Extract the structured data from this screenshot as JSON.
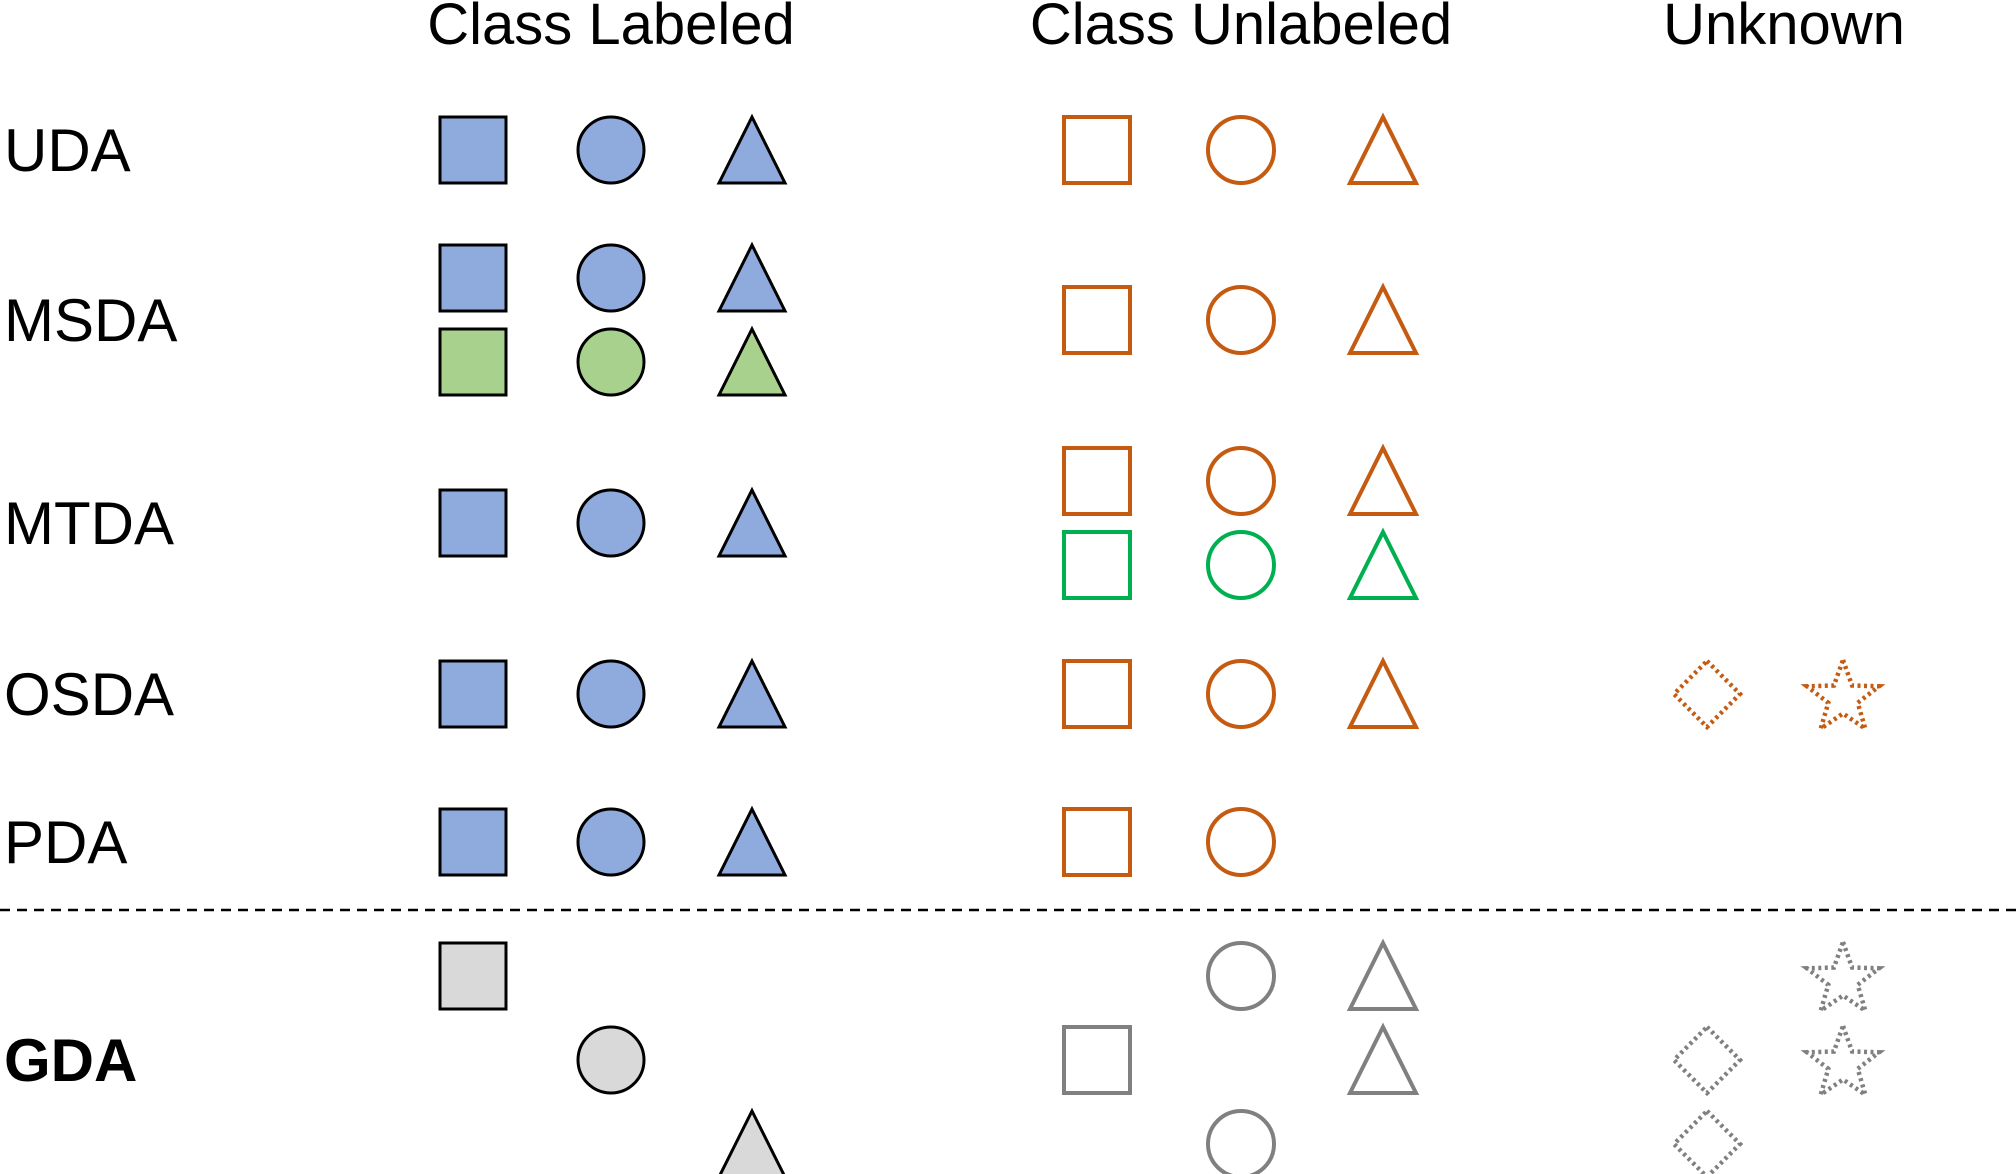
{
  "headers": {
    "class_labeled": "Class Labeled",
    "class_unlabeled": "Class Unlabeled",
    "unknown": "Unknown"
  },
  "colors": {
    "source_fill": "#8faadc",
    "source2_fill": "#a9d18e",
    "gda_fill": "#d9d9d9",
    "target_stroke": "#c55a11",
    "target2_stroke": "#00b050",
    "gda_stroke": "#808080",
    "black": "#000000"
  },
  "rows": [
    {
      "label": "UDA",
      "bold": false,
      "shapes": [
        {
          "shape": "square",
          "col": 0,
          "line": 0,
          "style": "source"
        },
        {
          "shape": "circle",
          "col": 1,
          "line": 0,
          "style": "source"
        },
        {
          "shape": "triangle",
          "col": 2,
          "line": 0,
          "style": "source"
        },
        {
          "shape": "square",
          "col": 3,
          "line": 0,
          "style": "target"
        },
        {
          "shape": "circle",
          "col": 4,
          "line": 0,
          "style": "target"
        },
        {
          "shape": "triangle",
          "col": 5,
          "line": 0,
          "style": "target"
        }
      ]
    },
    {
      "label": "MSDA",
      "bold": false,
      "shapes": [
        {
          "shape": "square",
          "col": 0,
          "line": -0.5,
          "style": "source"
        },
        {
          "shape": "circle",
          "col": 1,
          "line": -0.5,
          "style": "source"
        },
        {
          "shape": "triangle",
          "col": 2,
          "line": -0.5,
          "style": "source"
        },
        {
          "shape": "square",
          "col": 0,
          "line": 0.5,
          "style": "source2"
        },
        {
          "shape": "circle",
          "col": 1,
          "line": 0.5,
          "style": "source2"
        },
        {
          "shape": "triangle",
          "col": 2,
          "line": 0.5,
          "style": "source2"
        },
        {
          "shape": "square",
          "col": 3,
          "line": 0,
          "style": "target"
        },
        {
          "shape": "circle",
          "col": 4,
          "line": 0,
          "style": "target"
        },
        {
          "shape": "triangle",
          "col": 5,
          "line": 0,
          "style": "target"
        }
      ]
    },
    {
      "label": "MTDA",
      "bold": false,
      "shapes": [
        {
          "shape": "square",
          "col": 0,
          "line": 0,
          "style": "source"
        },
        {
          "shape": "circle",
          "col": 1,
          "line": 0,
          "style": "source"
        },
        {
          "shape": "triangle",
          "col": 2,
          "line": 0,
          "style": "source"
        },
        {
          "shape": "square",
          "col": 3,
          "line": -0.5,
          "style": "target"
        },
        {
          "shape": "circle",
          "col": 4,
          "line": -0.5,
          "style": "target"
        },
        {
          "shape": "triangle",
          "col": 5,
          "line": -0.5,
          "style": "target"
        },
        {
          "shape": "square",
          "col": 3,
          "line": 0.5,
          "style": "target2"
        },
        {
          "shape": "circle",
          "col": 4,
          "line": 0.5,
          "style": "target2"
        },
        {
          "shape": "triangle",
          "col": 5,
          "line": 0.5,
          "style": "target2"
        }
      ]
    },
    {
      "label": "OSDA",
      "bold": false,
      "shapes": [
        {
          "shape": "square",
          "col": 0,
          "line": 0,
          "style": "source"
        },
        {
          "shape": "circle",
          "col": 1,
          "line": 0,
          "style": "source"
        },
        {
          "shape": "triangle",
          "col": 2,
          "line": 0,
          "style": "source"
        },
        {
          "shape": "square",
          "col": 3,
          "line": 0,
          "style": "target"
        },
        {
          "shape": "circle",
          "col": 4,
          "line": 0,
          "style": "target"
        },
        {
          "shape": "triangle",
          "col": 5,
          "line": 0,
          "style": "target"
        },
        {
          "shape": "diamond",
          "col": 6,
          "line": 0,
          "style": "target-dotted"
        },
        {
          "shape": "star",
          "col": 7,
          "line": 0,
          "style": "target-dotted"
        }
      ]
    },
    {
      "label": "PDA",
      "bold": false,
      "shapes": [
        {
          "shape": "square",
          "col": 0,
          "line": 0,
          "style": "source"
        },
        {
          "shape": "circle",
          "col": 1,
          "line": 0,
          "style": "source"
        },
        {
          "shape": "triangle",
          "col": 2,
          "line": 0,
          "style": "source"
        },
        {
          "shape": "square",
          "col": 3,
          "line": 0,
          "style": "target"
        },
        {
          "shape": "circle",
          "col": 4,
          "line": 0,
          "style": "target"
        }
      ]
    },
    {
      "label": "GDA",
      "bold": true,
      "shapes": [
        {
          "shape": "square",
          "col": 0,
          "line": -1,
          "style": "gda-fill"
        },
        {
          "shape": "circle",
          "col": 1,
          "line": 0,
          "style": "gda-fill"
        },
        {
          "shape": "triangle",
          "col": 2,
          "line": 1,
          "style": "gda-fill"
        },
        {
          "shape": "circle",
          "col": 4,
          "line": -1,
          "style": "gda"
        },
        {
          "shape": "triangle",
          "col": 5,
          "line": -1,
          "style": "gda"
        },
        {
          "shape": "square",
          "col": 3,
          "line": 0,
          "style": "gda"
        },
        {
          "shape": "triangle",
          "col": 5,
          "line": 0,
          "style": "gda"
        },
        {
          "shape": "circle",
          "col": 4,
          "line": 1,
          "style": "gda"
        },
        {
          "shape": "star",
          "col": 7,
          "line": -1,
          "style": "gda-dotted"
        },
        {
          "shape": "diamond",
          "col": 6,
          "line": 0,
          "style": "gda-dotted"
        },
        {
          "shape": "star",
          "col": 7,
          "line": 0,
          "style": "gda-dotted"
        },
        {
          "shape": "diamond",
          "col": 6,
          "line": 1,
          "style": "gda-dotted"
        }
      ]
    }
  ]
}
